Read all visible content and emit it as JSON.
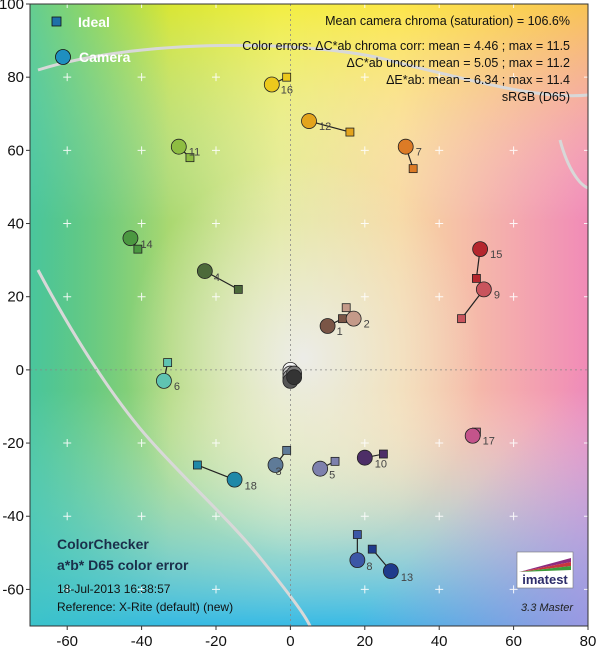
{
  "chart_data": {
    "type": "scatter",
    "xlim": [
      -70,
      80
    ],
    "ylim": [
      -70,
      100
    ],
    "x_ticks": [
      -60,
      -40,
      -20,
      0,
      20,
      40,
      60,
      80
    ],
    "y_ticks": [
      -60,
      -40,
      -20,
      0,
      20,
      40,
      60,
      80,
      100
    ],
    "grid": true,
    "legend": {
      "position": "top-left",
      "items": [
        {
          "marker": "square",
          "label": "Ideal",
          "color": "#1f6fa8"
        },
        {
          "marker": "circle",
          "label": "Camera",
          "color": "#1f8fc0"
        }
      ]
    },
    "stats": [
      "Mean camera chroma (saturation) = 106.6%",
      "Color errors: ΔC*ab chroma corr:  mean = 4.46 ;  max = 11.5",
      "ΔC*ab uncorr:  mean = 5.05 ;  max = 11.2",
      "ΔE*ab:  mean = 6.34 ;  max = 11.4",
      "sRGB (D65)"
    ],
    "title_lines": [
      "ColorChecker",
      "a*b* D65 color error"
    ],
    "footer_lines": [
      "18-Jul-2013 16:38:57",
      "Reference: X-Rite (default) (new)"
    ],
    "version": "3.3  Master",
    "brand": "imatest",
    "patches": [
      {
        "id": "1",
        "ideal": [
          14,
          14
        ],
        "camera": [
          10,
          12
        ],
        "color": "#7a5546"
      },
      {
        "id": "2",
        "ideal": [
          15,
          17
        ],
        "camera": [
          17,
          14
        ],
        "color": "#c49a89"
      },
      {
        "id": "3",
        "ideal": [
          -1,
          -22
        ],
        "camera": [
          -4,
          -26
        ],
        "color": "#5f7b98"
      },
      {
        "id": "4",
        "ideal": [
          -14,
          22
        ],
        "camera": [
          -23,
          27
        ],
        "color": "#4c6a3a"
      },
      {
        "id": "5",
        "ideal": [
          12,
          -25
        ],
        "camera": [
          8,
          -27
        ],
        "color": "#7e81ad"
      },
      {
        "id": "6",
        "ideal": [
          -33,
          2
        ],
        "camera": [
          -34,
          -3
        ],
        "color": "#5fc4b2"
      },
      {
        "id": "7",
        "ideal": [
          33,
          55
        ],
        "camera": [
          31,
          61
        ],
        "color": "#dc7b26"
      },
      {
        "id": "8",
        "ideal": [
          18,
          -45
        ],
        "camera": [
          18,
          -52
        ],
        "color": "#3c57a6"
      },
      {
        "id": "9",
        "ideal": [
          46,
          14
        ],
        "camera": [
          52,
          22
        ],
        "color": "#c9545d"
      },
      {
        "id": "10",
        "ideal": [
          25,
          -23
        ],
        "camera": [
          20,
          -24
        ],
        "color": "#4d2e67"
      },
      {
        "id": "11",
        "ideal": [
          -27,
          58
        ],
        "camera": [
          -30,
          61
        ],
        "color": "#8ebd42"
      },
      {
        "id": "12",
        "ideal": [
          16,
          65
        ],
        "camera": [
          5,
          68
        ],
        "color": "#e3a41d"
      },
      {
        "id": "13",
        "ideal": [
          22,
          -49
        ],
        "camera": [
          27,
          -55
        ],
        "color": "#1f3b8c"
      },
      {
        "id": "14",
        "ideal": [
          -41,
          33
        ],
        "camera": [
          -43,
          36
        ],
        "color": "#4b9841"
      },
      {
        "id": "15",
        "ideal": [
          50,
          25
        ],
        "camera": [
          51,
          33
        ],
        "color": "#b5272e"
      },
      {
        "id": "16",
        "ideal": [
          -1,
          80
        ],
        "camera": [
          -5,
          78
        ],
        "color": "#ecc91c"
      },
      {
        "id": "17",
        "ideal": [
          50,
          -17
        ],
        "camera": [
          49,
          -18
        ],
        "color": "#c4548b"
      },
      {
        "id": "18",
        "ideal": [
          -25,
          -26
        ],
        "camera": [
          -15,
          -30
        ],
        "color": "#1f89a8"
      },
      {
        "id": "19",
        "ideal": [
          0,
          0
        ],
        "camera": [
          0,
          0
        ],
        "color": "#f4f4f4"
      },
      {
        "id": "20",
        "ideal": [
          0,
          0
        ],
        "camera": [
          0,
          -1
        ],
        "color": "#c7c7c7"
      },
      {
        "id": "21",
        "ideal": [
          0,
          0
        ],
        "camera": [
          0,
          -2
        ],
        "color": "#a0a0a0"
      },
      {
        "id": "22",
        "ideal": [
          0,
          0
        ],
        "camera": [
          1,
          -1
        ],
        "color": "#7a7a7a"
      },
      {
        "id": "23",
        "ideal": [
          0,
          0
        ],
        "camera": [
          0,
          -3
        ],
        "color": "#555555"
      },
      {
        "id": "24",
        "ideal": [
          0,
          0
        ],
        "camera": [
          1,
          -2
        ],
        "color": "#343434"
      }
    ],
    "label_offsets": {
      "1": [
        5,
        5
      ],
      "2": [
        6,
        5
      ],
      "3": [
        -4,
        6
      ],
      "4": [
        5,
        6
      ],
      "5": [
        5,
        6
      ],
      "6": [
        6,
        5
      ],
      "7": [
        6,
        5
      ],
      "8": [
        5,
        6
      ],
      "9": [
        6,
        5
      ],
      "10": [
        6,
        6
      ],
      "11": [
        6,
        5
      ],
      "12": [
        6,
        5
      ],
      "13": [
        6,
        6
      ],
      "14": [
        6,
        6
      ],
      "15": [
        6,
        5
      ],
      "16": [
        5,
        5
      ],
      "17": [
        6,
        5
      ],
      "18": [
        6,
        6
      ]
    }
  }
}
